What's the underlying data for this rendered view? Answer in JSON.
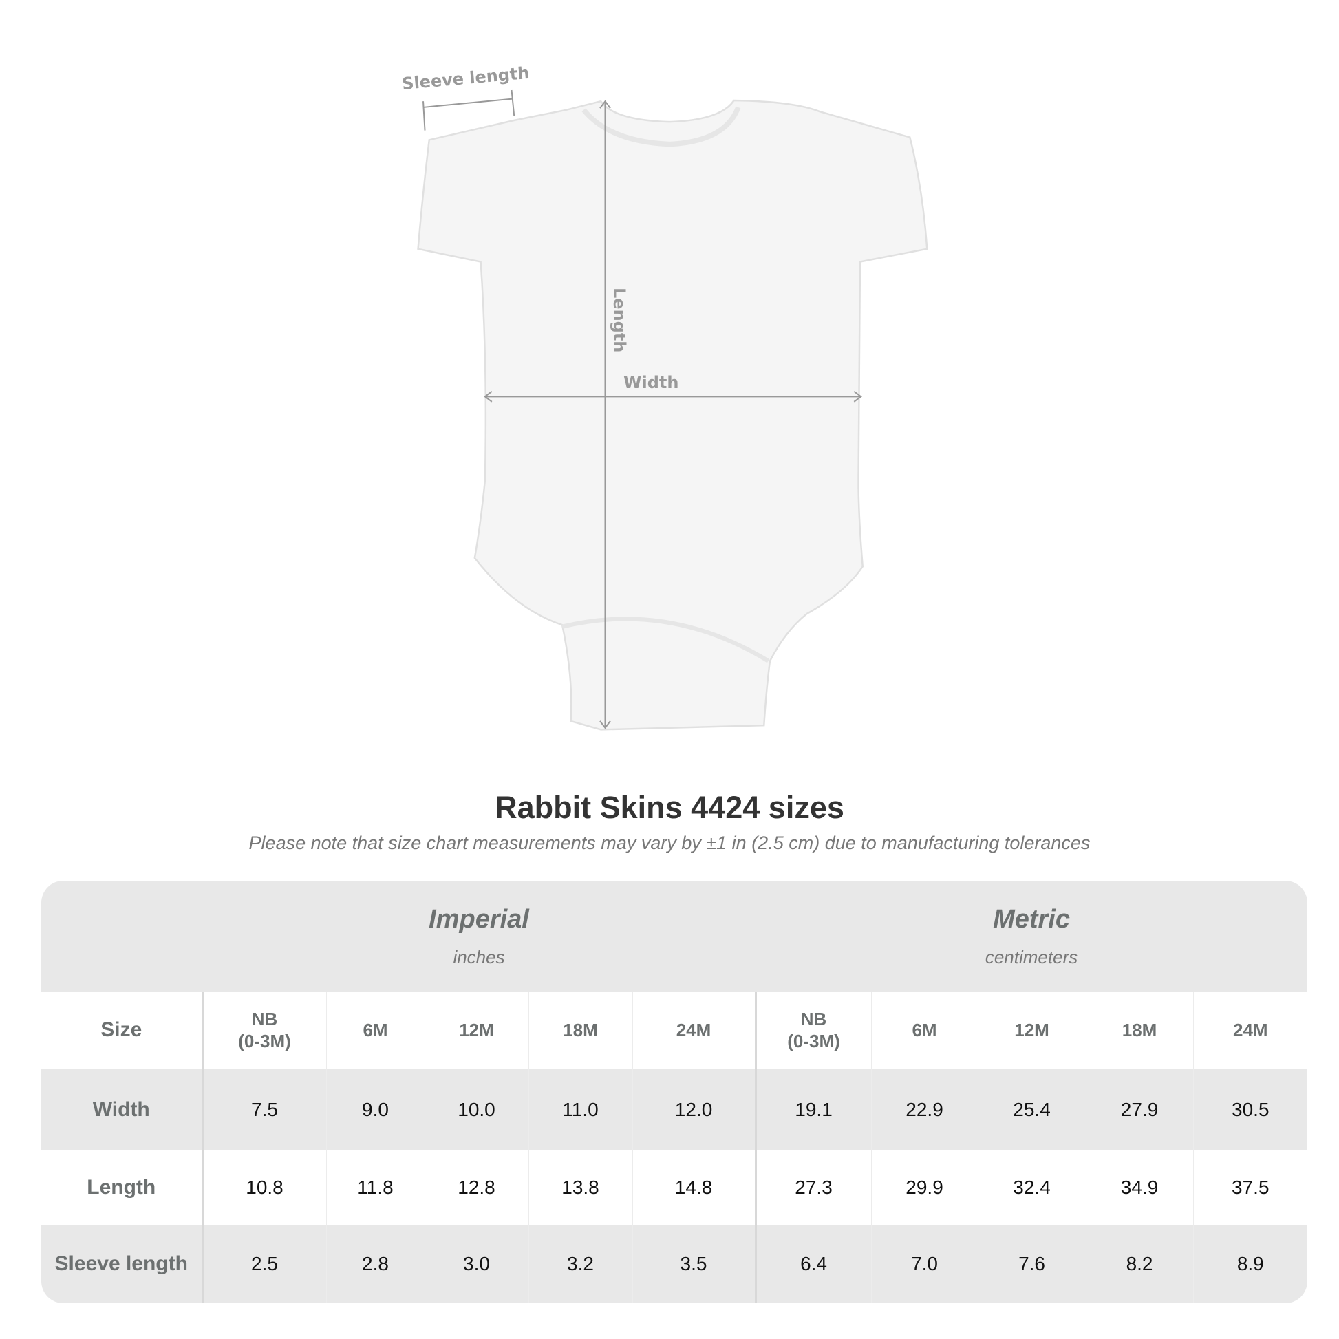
{
  "diagram": {
    "sleeve_label": "Sleeve length",
    "length_label": "Length",
    "width_label": "Width"
  },
  "title": "Rabbit Skins 4424 sizes",
  "subtitle": "Please note that size chart measurements may vary by ±1 in (2.5 cm) due to manufacturing tolerances",
  "table": {
    "imperial": {
      "label": "Imperial",
      "unit": "inches"
    },
    "metric": {
      "label": "Metric",
      "unit": "centimeters"
    },
    "size_label": "Size",
    "sizes": [
      "NB\n(0-3M)",
      "6M",
      "12M",
      "18M",
      "24M"
    ],
    "rows": [
      {
        "label": "Width",
        "imperial": [
          "7.5",
          "9.0",
          "10.0",
          "11.0",
          "12.0"
        ],
        "metric": [
          "19.1",
          "22.9",
          "25.4",
          "27.9",
          "30.5"
        ]
      },
      {
        "label": "Length",
        "imperial": [
          "10.8",
          "11.8",
          "12.8",
          "13.8",
          "14.8"
        ],
        "metric": [
          "27.3",
          "29.9",
          "32.4",
          "34.9",
          "37.5"
        ]
      },
      {
        "label": "Sleeve length",
        "imperial": [
          "2.5",
          "2.8",
          "3.0",
          "3.2",
          "3.5"
        ],
        "metric": [
          "6.4",
          "7.0",
          "7.6",
          "8.2",
          "8.9"
        ]
      }
    ]
  },
  "colors": {
    "band": "#e8e8e8",
    "header_text": "#6c7070",
    "measure_lines": "#999999"
  }
}
